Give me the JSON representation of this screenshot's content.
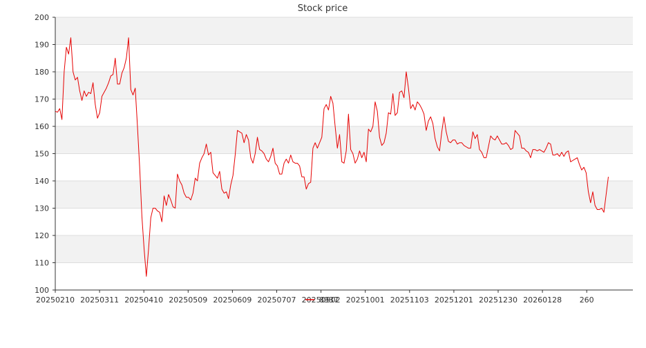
{
  "chart_data": {
    "type": "line",
    "title": "Stock price",
    "xlabel": "",
    "ylabel": "",
    "ylim": [
      100,
      200
    ],
    "y_ticks": [
      100,
      110,
      120,
      130,
      140,
      150,
      160,
      170,
      180,
      190,
      200
    ],
    "x_tick_labels": [
      "20250210",
      "20250311",
      "20250410",
      "20250509",
      "20250609",
      "20250707",
      "20250902",
      "20251001",
      "20251103",
      "20251201",
      "20251230",
      "20260128",
      "260"
    ],
    "grid": "horizontal banded",
    "legend": {
      "placement": "bottom-center"
    },
    "colors": {
      "line": "#e60000",
      "band": "#f2f2f2",
      "grid": "#dddddd",
      "axis": "#333333"
    },
    "series": [
      {
        "name": "8937",
        "color": "#e60000",
        "values": [
          165.5,
          165.2,
          166.5,
          162.5,
          180,
          189,
          186.5,
          192.5,
          180,
          177,
          178,
          173,
          169.5,
          173,
          171,
          172.5,
          172,
          176,
          168,
          163,
          165,
          171,
          172.5,
          174,
          176,
          178.5,
          179,
          185,
          175.5,
          175.5,
          179.5,
          181.5,
          185,
          192.5,
          173.5,
          171.5,
          174,
          160,
          145,
          127,
          115,
          105,
          115,
          126.5,
          130,
          130,
          129,
          128.5,
          125,
          134.5,
          131,
          135,
          133,
          130.5,
          130,
          142.5,
          140,
          138.5,
          135.5,
          134,
          134,
          133,
          135.5,
          141,
          140,
          146.5,
          148.5,
          150,
          153.5,
          149.5,
          150.5,
          143,
          142,
          141,
          143.5,
          137,
          135.5,
          136,
          133.5,
          138.5,
          142,
          149.5,
          158.5,
          158,
          157.5,
          154,
          157,
          155,
          148.5,
          146.5,
          150,
          156,
          151.5,
          151,
          150,
          148,
          147,
          149,
          152,
          146.5,
          145.5,
          142.5,
          142.5,
          146.5,
          148,
          146.5,
          149.5,
          147,
          146.5,
          146.5,
          145.5,
          141.5,
          141.5,
          137,
          139,
          139.5,
          152,
          154,
          152,
          154,
          156,
          166.5,
          168,
          166,
          171,
          168.5,
          160,
          152,
          157,
          147,
          146.5,
          151,
          164.5,
          151.5,
          150,
          146.5,
          148,
          151,
          148.5,
          150.5,
          147,
          159,
          158,
          160,
          169,
          165.5,
          156,
          153,
          154,
          157.5,
          165,
          164.5,
          172,
          164,
          165,
          172.5,
          173,
          170.5,
          180,
          174,
          166.5,
          168,
          166,
          169,
          168,
          166.5,
          164.5,
          158.5,
          162,
          163.5,
          161,
          155.5,
          152.5,
          151,
          158,
          163.5,
          158,
          154.5,
          154,
          155,
          155,
          153.5,
          154,
          154,
          153,
          152.5,
          152,
          152,
          158,
          155.5,
          157,
          151.5,
          150.5,
          148.5,
          148.5,
          152.5,
          156.5,
          155.5,
          155,
          156.5,
          155,
          153.5,
          153.5,
          154,
          153,
          151.5,
          152,
          158.5,
          157.5,
          156.5,
          152,
          152,
          151,
          150.5,
          148.5,
          151.5,
          151.5,
          151,
          151.5,
          151,
          150.5,
          152,
          154,
          153.5,
          149.5,
          149.5,
          150,
          149,
          150.5,
          149,
          150.5,
          151,
          147,
          147.5,
          148,
          148.5,
          146,
          144,
          145,
          143,
          136,
          132,
          136,
          131,
          129.5,
          129.5,
          130,
          128.5,
          135,
          141.5
        ]
      }
    ]
  }
}
